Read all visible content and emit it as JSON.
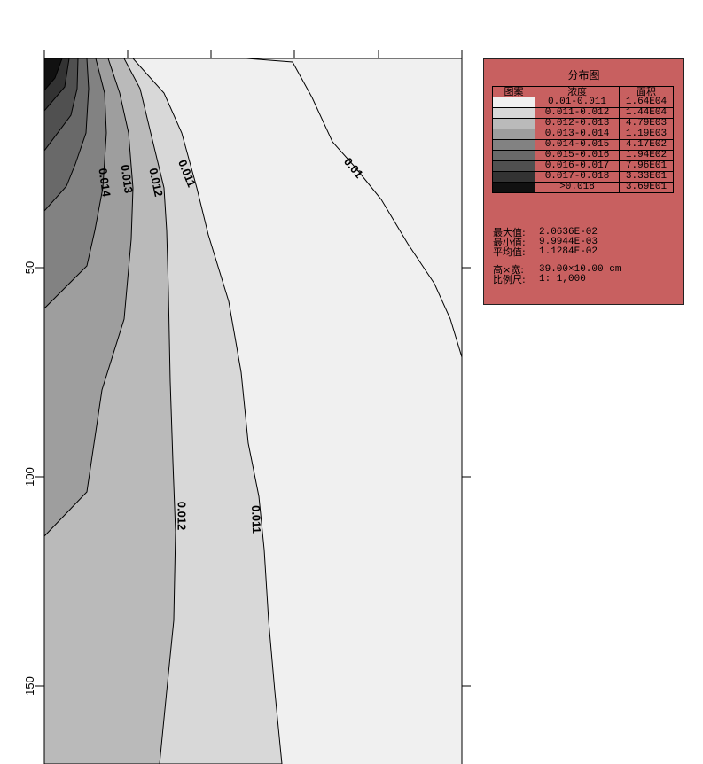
{
  "chart_data": {
    "type": "contour",
    "y_axis": {
      "ticks": [
        50,
        100,
        150
      ],
      "direction": "down"
    },
    "contour_levels": [
      0.01,
      0.011,
      0.012,
      0.013,
      0.014
    ],
    "contour_labels": [
      {
        "text": "0.014"
      },
      {
        "text": "0.013"
      },
      {
        "text": "0.012"
      },
      {
        "text": "0.011"
      },
      {
        "text": "0.01"
      },
      {
        "text": "0.012"
      },
      {
        "text": "0.011"
      }
    ],
    "legend": {
      "title": "分布图",
      "headers": [
        "图案",
        "浓度",
        "面积"
      ],
      "rows": [
        {
          "color": "#f0f0f0",
          "range": "0.01-0.011",
          "area": "1.64E04"
        },
        {
          "color": "#d8d8d8",
          "range": "0.011-0.012",
          "area": "1.44E04"
        },
        {
          "color": "#bababa",
          "range": "0.012-0.013",
          "area": "4.79E03"
        },
        {
          "color": "#9e9e9e",
          "range": "0.013-0.014",
          "area": "1.19E03"
        },
        {
          "color": "#828282",
          "range": "0.014-0.015",
          "area": "4.17E02"
        },
        {
          "color": "#696969",
          "range": "0.015-0.016",
          "area": "1.94E02"
        },
        {
          "color": "#505050",
          "range": "0.016-0.017",
          "area": "7.96E01"
        },
        {
          "color": "#333333",
          "range": "0.017-0.018",
          "area": "3.33E01"
        },
        {
          "color": "#111111",
          "range": ">0.018",
          "area": "3.69E01"
        }
      ],
      "stats": [
        {
          "label": "最大值:",
          "value": "2.0636E-02"
        },
        {
          "label": "最小值:",
          "value": "9.9944E-03"
        },
        {
          "label": "平均值:",
          "value": "1.1284E-02"
        }
      ],
      "dims": [
        {
          "label": "高×宽:",
          "value": "39.00×10.00 cm"
        },
        {
          "label": "比例尺:",
          "value": "1: 1,000"
        }
      ]
    }
  }
}
